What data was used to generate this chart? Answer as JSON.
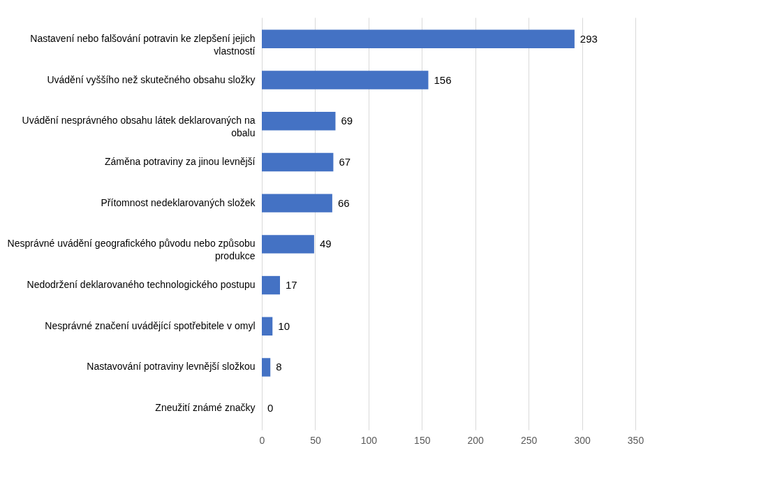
{
  "chart_data": {
    "type": "bar",
    "orientation": "horizontal",
    "categories": [
      "Nastavení nebo falšování potravin ke zlepšení jejich vlastností",
      "Uvádění vyššího než skutečného obsahu složky",
      "Uvádění nesprávného obsahu látek deklarovaných na obalu",
      "Záměna potraviny za jinou levnější",
      "Přítomnost nedeklarovaných složek",
      "Nesprávné uvádění geografického původu nebo způsobu produkce",
      "Nedodržení deklarovaného technologického postupu",
      "Nesprávné značení uvádějící spotřebitele v omyl",
      "Nastavování potraviny levnější složkou",
      "Zneužití známé značky"
    ],
    "values": [
      293,
      156,
      69,
      67,
      66,
      49,
      17,
      10,
      8,
      0
    ],
    "color": "#4472c4",
    "xlim": [
      0,
      350
    ],
    "xticks": [
      0,
      50,
      100,
      150,
      200,
      250,
      300,
      350
    ],
    "grid": "x",
    "data_labels": true
  }
}
